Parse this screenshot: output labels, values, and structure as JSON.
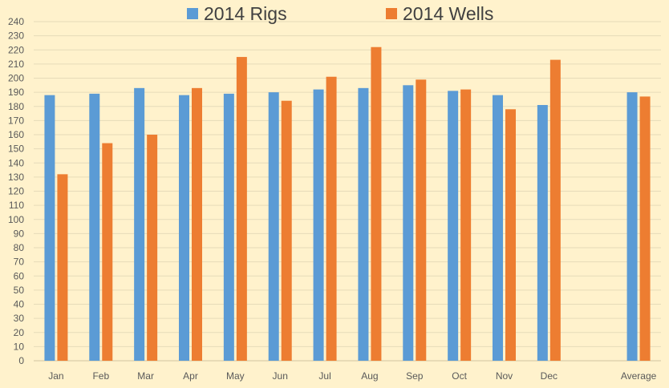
{
  "chart_data": {
    "type": "bar",
    "categories": [
      "Jan",
      "Feb",
      "Mar",
      "Apr",
      "May",
      "Jun",
      "Jul",
      "Aug",
      "Sep",
      "Oct",
      "Nov",
      "Dec",
      "",
      "Average"
    ],
    "series": [
      {
        "name": "2014 Rigs",
        "color": "#5B9BD5",
        "values": [
          188,
          189,
          193,
          188,
          189,
          190,
          192,
          193,
          195,
          191,
          188,
          181,
          null,
          190
        ]
      },
      {
        "name": "2014 Wells",
        "color": "#ED7D31",
        "values": [
          132,
          154,
          160,
          193,
          215,
          184,
          201,
          222,
          199,
          192,
          178,
          213,
          null,
          187
        ]
      }
    ],
    "ylim": [
      0,
      240
    ],
    "ytick_step": 10,
    "grid": true,
    "legend_position": "top"
  }
}
